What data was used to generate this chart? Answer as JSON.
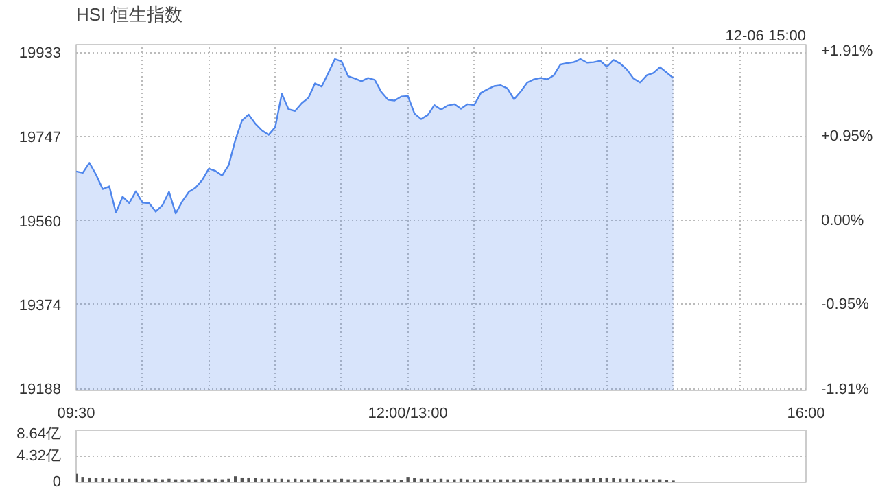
{
  "chart_data": [
    {
      "type": "area",
      "title": "HSI 恒生指数",
      "annotations": [
        "12-06 15:00"
      ],
      "categories": [
        "09:30",
        null,
        null,
        null,
        null,
        null,
        null,
        null,
        null,
        null,
        null,
        null,
        null,
        null,
        null,
        null,
        null,
        null,
        null,
        null,
        null,
        null,
        null,
        null,
        null,
        null,
        null,
        null,
        null,
        null,
        null,
        null,
        null,
        null,
        null,
        null,
        null,
        null,
        null,
        null,
        null,
        null,
        null,
        null,
        null,
        null,
        null,
        null,
        null,
        null,
        "12:00/13:00",
        null,
        null,
        null,
        null,
        null,
        null,
        null,
        null,
        null,
        null,
        null,
        null,
        null,
        null,
        null,
        null,
        null,
        null,
        null,
        null,
        null,
        null,
        null,
        null,
        null,
        null,
        null,
        null,
        null,
        null,
        null,
        null,
        null,
        null,
        null,
        null,
        null,
        null,
        null,
        null,
        null,
        null,
        null,
        null,
        null,
        null,
        null,
        null,
        null,
        null,
        null,
        null,
        null,
        null,
        null,
        null,
        null,
        null,
        null,
        "16:00"
      ],
      "series": [
        {
          "color": "#4f86ec",
          "values": [
            19669,
            19666,
            19688,
            19662,
            19630,
            19636,
            19578,
            19613,
            19599,
            19625,
            19600,
            19599,
            19580,
            19594,
            19624,
            19576,
            19603,
            19624,
            19633,
            19650,
            19675,
            19670,
            19660,
            19683,
            19739,
            19782,
            19795,
            19775,
            19760,
            19750,
            19767,
            19841,
            19807,
            19803,
            19820,
            19832,
            19864,
            19857,
            19887,
            19918,
            19913,
            19880,
            19875,
            19869,
            19876,
            19872,
            19845,
            19828,
            19826,
            19835,
            19836,
            19797,
            19785,
            19794,
            19816,
            19806,
            19815,
            19818,
            19808,
            19818,
            19816,
            19843,
            19851,
            19858,
            19860,
            19853,
            19829,
            19846,
            19866,
            19873,
            19876,
            19873,
            19882,
            19906,
            19909,
            19911,
            19918,
            19910,
            19911,
            19914,
            19901,
            19916,
            19908,
            19895,
            19875,
            19866,
            19882,
            19887,
            19900,
            19888,
            19876,
            null,
            null,
            null,
            null,
            null,
            null,
            null,
            null,
            null,
            null,
            null,
            null,
            null,
            null,
            null,
            null,
            null,
            null,
            null,
            null
          ]
        }
      ],
      "ylim": [
        19184,
        19950
      ],
      "yticks": [
        19188,
        19374,
        19560,
        19747,
        19933
      ],
      "y2lim": [
        -1.92,
        1.99
      ],
      "y2ticks": [
        {
          "value": -1.91,
          "label": "-1.91%"
        },
        {
          "value": -0.95,
          "label": "-0.95%"
        },
        {
          "value": 0,
          "label": "0.00%"
        },
        {
          "value": 0.95,
          "label": "+0.95%"
        },
        {
          "value": 1.91,
          "label": "+1.91%"
        }
      ],
      "grid": true
    },
    {
      "type": "bar",
      "color": "#555555",
      "categories": [
        null,
        null,
        null,
        null,
        null,
        null,
        null,
        null,
        null,
        null,
        null,
        null,
        null,
        null,
        null,
        null,
        null,
        null,
        null,
        null,
        null,
        null,
        null,
        null,
        null,
        null,
        null,
        null,
        null,
        null,
        null,
        null,
        null,
        null,
        null,
        null,
        null,
        null,
        null,
        null,
        null,
        null,
        null,
        null,
        null,
        null,
        null,
        null,
        null,
        null,
        null,
        null,
        null,
        null,
        null,
        null,
        null,
        null,
        null,
        null,
        null,
        null,
        null,
        null,
        null,
        null,
        null,
        null,
        null,
        null,
        null,
        null,
        null,
        null,
        null,
        null,
        null,
        null,
        null,
        null,
        null,
        null,
        null,
        null,
        null,
        null,
        null,
        null,
        null,
        null,
        null,
        null,
        null,
        null,
        null,
        null,
        null,
        null,
        null,
        null,
        null,
        null,
        null,
        null,
        null,
        null,
        null,
        null,
        null,
        null,
        null
      ],
      "values": [
        1.4,
        0.9,
        0.8,
        0.7,
        0.7,
        0.6,
        0.7,
        0.6,
        0.6,
        0.6,
        0.6,
        0.5,
        0.6,
        0.5,
        0.6,
        0.5,
        0.5,
        0.5,
        0.5,
        0.6,
        0.5,
        0.6,
        0.5,
        0.6,
        1.0,
        0.8,
        0.8,
        0.7,
        0.6,
        0.6,
        0.6,
        0.6,
        0.5,
        0.6,
        0.5,
        0.5,
        0.6,
        0.5,
        0.5,
        0.5,
        0.6,
        0.5,
        0.5,
        0.5,
        0.5,
        0.5,
        0.4,
        0.5,
        0.5,
        0.4,
        0.9,
        0.7,
        0.6,
        0.6,
        0.5,
        0.6,
        0.5,
        0.5,
        0.6,
        0.5,
        0.5,
        0.5,
        0.5,
        0.5,
        0.5,
        0.5,
        0.5,
        0.5,
        0.5,
        0.5,
        0.5,
        0.5,
        0.5,
        0.6,
        0.5,
        0.6,
        0.6,
        0.6,
        0.7,
        0.7,
        0.8,
        0.7,
        0.6,
        0.6,
        0.6,
        0.5,
        0.5,
        0.5,
        0.5,
        0.4,
        0.3,
        null,
        null,
        null,
        null,
        null,
        null,
        null,
        null,
        null,
        null,
        null,
        null,
        null,
        null,
        null,
        null,
        null,
        null,
        null,
        null
      ],
      "ylim": [
        0,
        8.64
      ],
      "yticks": [
        0,
        {
          "value": 4.32,
          "label": "4.32亿"
        },
        {
          "value": 8.64,
          "label": "8.64亿"
        }
      ],
      "grid": "y"
    }
  ]
}
